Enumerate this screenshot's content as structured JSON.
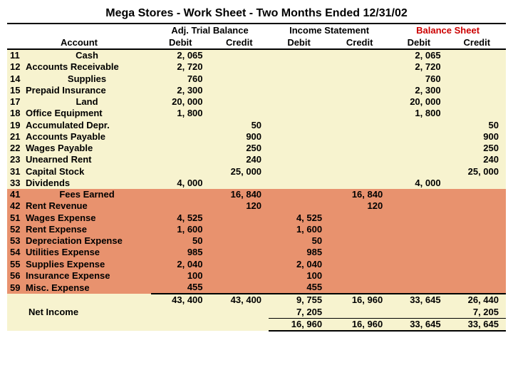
{
  "title": "Mega Stores - Work Sheet - Two Months Ended 12/31/02",
  "sections": {
    "adj": "Adj. Trial Balance",
    "inc": "Income Statement",
    "bal": "Balance Sheet"
  },
  "headers": {
    "account": "Account",
    "debit": "Debit",
    "credit": "Credit"
  },
  "rows": [
    {
      "no": "11",
      "name": "Cash",
      "align": "center",
      "hl": false,
      "adjD": "2, 065",
      "adjC": "",
      "incD": "",
      "incC": "",
      "balD": "2, 065",
      "balC": ""
    },
    {
      "no": "12",
      "name": "Accounts Receivable",
      "align": "left",
      "hl": false,
      "adjD": "2, 720",
      "adjC": "",
      "incD": "",
      "incC": "",
      "balD": "2, 720",
      "balC": ""
    },
    {
      "no": "14",
      "name": "Supplies",
      "align": "center",
      "hl": false,
      "adjD": "760",
      "adjC": "",
      "incD": "",
      "incC": "",
      "balD": "760",
      "balC": ""
    },
    {
      "no": "15",
      "name": "Prepaid Insurance",
      "align": "left",
      "hl": false,
      "adjD": "2, 300",
      "adjC": "",
      "incD": "",
      "incC": "",
      "balD": "2, 300",
      "balC": ""
    },
    {
      "no": "17",
      "name": "Land",
      "align": "center",
      "hl": false,
      "adjD": "20, 000",
      "adjC": "",
      "incD": "",
      "incC": "",
      "balD": "20, 000",
      "balC": ""
    },
    {
      "no": "18",
      "name": "Office Equipment",
      "align": "left",
      "hl": false,
      "adjD": "1, 800",
      "adjC": "",
      "incD": "",
      "incC": "",
      "balD": "1, 800",
      "balC": ""
    },
    {
      "no": "19",
      "name": "Accumulated Depr.",
      "align": "left",
      "hl": false,
      "adjD": "",
      "adjC": "50",
      "incD": "",
      "incC": "",
      "balD": "",
      "balC": "50"
    },
    {
      "no": "21",
      "name": "Accounts Payable",
      "align": "left",
      "hl": false,
      "adjD": "",
      "adjC": "900",
      "incD": "",
      "incC": "",
      "balD": "",
      "balC": "900"
    },
    {
      "no": "22",
      "name": "Wages Payable",
      "align": "left",
      "hl": false,
      "adjD": "",
      "adjC": "250",
      "incD": "",
      "incC": "",
      "balD": "",
      "balC": "250"
    },
    {
      "no": "23",
      "name": "Unearned Rent",
      "align": "left",
      "hl": false,
      "adjD": "",
      "adjC": "240",
      "incD": "",
      "incC": "",
      "balD": "",
      "balC": "240"
    },
    {
      "no": "31",
      "name": "Capital Stock",
      "align": "left",
      "hl": false,
      "adjD": "",
      "adjC": "25, 000",
      "incD": "",
      "incC": "",
      "balD": "",
      "balC": "25, 000"
    },
    {
      "no": "33",
      "name": "Dividends",
      "align": "left",
      "hl": false,
      "adjD": "4, 000",
      "adjC": "",
      "incD": "",
      "incC": "",
      "balD": "4, 000",
      "balC": ""
    },
    {
      "no": "41",
      "name": "Fees Earned",
      "align": "center",
      "hl": true,
      "adjD": "",
      "adjC": "16, 840",
      "incD": "",
      "incC": "16, 840",
      "balD": "",
      "balC": ""
    },
    {
      "no": "42",
      "name": "Rent Revenue",
      "align": "left",
      "hl": true,
      "adjD": "",
      "adjC": "120",
      "incD": "",
      "incC": "120",
      "balD": "",
      "balC": ""
    },
    {
      "no": "51",
      "name": "Wages Expense",
      "align": "left",
      "hl": true,
      "adjD": "4, 525",
      "adjC": "",
      "incD": "4, 525",
      "incC": "",
      "balD": "",
      "balC": ""
    },
    {
      "no": "52",
      "name": "Rent Expense",
      "align": "left",
      "hl": true,
      "adjD": "1, 600",
      "adjC": "",
      "incD": "1, 600",
      "incC": "",
      "balD": "",
      "balC": ""
    },
    {
      "no": "53",
      "name": "Depreciation Expense",
      "align": "left",
      "hl": true,
      "adjD": "50",
      "adjC": "",
      "incD": "50",
      "incC": "",
      "balD": "",
      "balC": ""
    },
    {
      "no": "54",
      "name": "Utilities Expense",
      "align": "left",
      "hl": true,
      "adjD": "985",
      "adjC": "",
      "incD": "985",
      "incC": "",
      "balD": "",
      "balC": ""
    },
    {
      "no": "55",
      "name": "Supplies Expense",
      "align": "left",
      "hl": true,
      "adjD": "2, 040",
      "adjC": "",
      "incD": "2, 040",
      "incC": "",
      "balD": "",
      "balC": ""
    },
    {
      "no": "56",
      "name": "Insurance Expense",
      "align": "left",
      "hl": true,
      "adjD": "100",
      "adjC": "",
      "incD": "100",
      "incC": "",
      "balD": "",
      "balC": ""
    },
    {
      "no": "59",
      "name": "Misc. Expense",
      "align": "left",
      "hl": true,
      "adjD": "455",
      "adjC": "",
      "incD": "455",
      "incC": "",
      "balD": "",
      "balC": ""
    }
  ],
  "totals1": {
    "adjD": "43, 400",
    "adjC": "43, 400",
    "incD": "9, 755",
    "incC": "16, 960",
    "balD": "33, 645",
    "balC": "26, 440"
  },
  "netIncomeLabel": "Net Income",
  "netIncome": {
    "incD": "7, 205",
    "balC": "7, 205"
  },
  "totals2": {
    "incD": "16, 960",
    "incC": "16, 960",
    "balD": "33, 645",
    "balC": "33, 645"
  },
  "colors": {
    "stripe": "#f7f3cf",
    "highlight": "#e8926e",
    "red": "#cc0000"
  }
}
